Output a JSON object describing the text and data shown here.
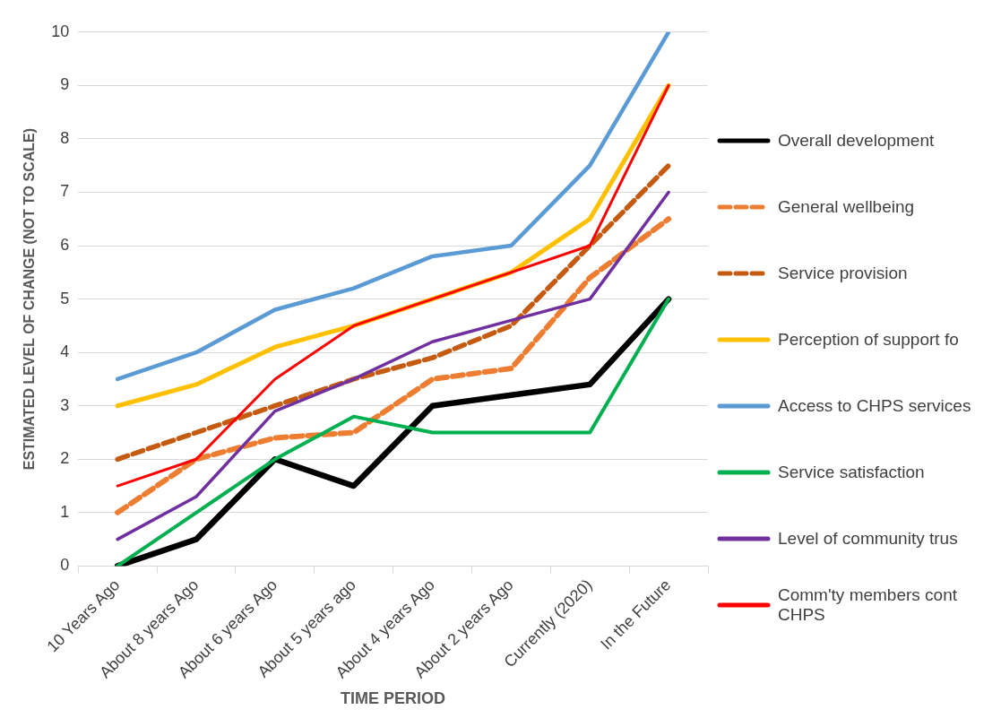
{
  "chart_data": {
    "type": "line",
    "xlabel": "TIME PERIOD",
    "ylabel": "ESTIMATED LEVEL OF CHANGE (NOT TO SCALE)",
    "categories": [
      "10 Years Ago",
      "About 8 years Ago",
      "About 6 years Ago",
      "About 5 years ago",
      "About 4 years Ago",
      "About 2 years Ago",
      "Currently (2020)",
      "In the Future"
    ],
    "ylim": [
      0,
      10
    ],
    "yticks": [
      0,
      1,
      2,
      3,
      4,
      5,
      6,
      7,
      8,
      9,
      10
    ],
    "grid": "y",
    "legend": "right",
    "marker": "none",
    "series": [
      {
        "name": "Overall development",
        "color": "#000000",
        "line_style": "solid",
        "values": [
          0,
          0.5,
          2,
          1.5,
          3,
          3.2,
          3.4,
          5
        ]
      },
      {
        "name": "General wellbeing",
        "color": "#ed7d31",
        "line_style": "dashed",
        "values": [
          1,
          2,
          2.4,
          2.5,
          3.5,
          3.7,
          5.4,
          6.5
        ]
      },
      {
        "name": "Service provision",
        "color": "#c55a11",
        "line_style": "dashed",
        "values": [
          2,
          2.5,
          3,
          3.5,
          3.9,
          4.5,
          6,
          7.5
        ]
      },
      {
        "name": "Perception of support fo",
        "color": "#ffc000",
        "line_style": "solid",
        "values": [
          3,
          3.4,
          4.1,
          4.5,
          5,
          5.5,
          6.5,
          9
        ]
      },
      {
        "name": "Access to CHPS services",
        "color": "#5b9bd5",
        "line_style": "solid",
        "values": [
          3.5,
          4,
          4.8,
          5.2,
          5.8,
          6,
          7.5,
          10
        ]
      },
      {
        "name": "Service satisfaction",
        "color": "#00b050",
        "line_style": "solid",
        "values": [
          0,
          1,
          2,
          2.8,
          2.5,
          2.5,
          2.5,
          5
        ]
      },
      {
        "name": "Level of community trus",
        "color": "#7030a0",
        "line_style": "solid",
        "values": [
          0.5,
          1.3,
          2.9,
          3.5,
          4.2,
          4.6,
          5,
          7
        ]
      },
      {
        "name": "Comm'ty members cont CHPS",
        "color": "#ff0000",
        "line_style": "solid",
        "values": [
          1.5,
          2,
          3.5,
          4.5,
          5,
          5.5,
          6,
          9
        ]
      }
    ]
  }
}
